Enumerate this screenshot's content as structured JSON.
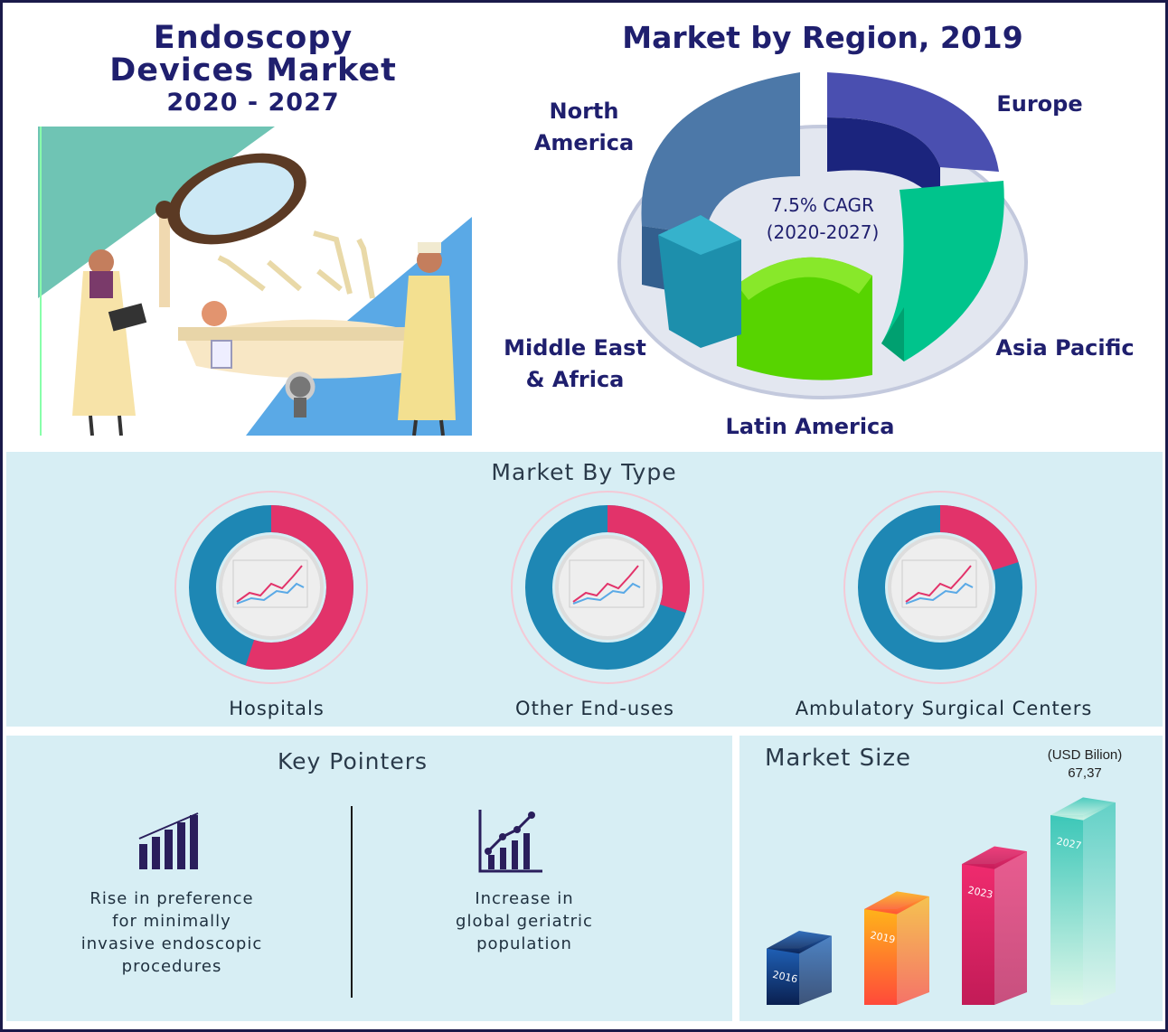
{
  "header": {
    "title_line1": "Endoscopy",
    "title_line2": "Devices Market",
    "years": "2020 - 2027"
  },
  "region": {
    "title": "Market by Region, 2019",
    "cagr_line1": "7.5% CAGR",
    "cagr_line2": "(2020-2027)",
    "labels": {
      "north_america_1": "North",
      "north_america_2": "America",
      "europe": "Europe",
      "asia_pacific": "Asia Pacific",
      "latin_america": "Latin America",
      "mea_1": "Middle East",
      "mea_2": "& Africa"
    }
  },
  "type_panel": {
    "heading": "Market By Type",
    "items": [
      {
        "label": "Hospitals",
        "share": 0.55
      },
      {
        "label": "Other End-uses",
        "share": 0.3
      },
      {
        "label": "Ambulatory Surgical Centers",
        "share": 0.2
      }
    ]
  },
  "key_pointers": {
    "heading": "Key Pointers",
    "items": [
      {
        "line1": "Rise in preference",
        "line2": "for minimally",
        "line3": "invasive endoscopic",
        "line4": "procedures",
        "icon": "bar-chart-icon"
      },
      {
        "line1": "Increase in",
        "line2": "global geriatric",
        "line3": "population",
        "line4": "",
        "icon": "growth-chart-icon"
      }
    ]
  },
  "market_size": {
    "heading": "Market Size",
    "unit": "(USD Bilion)",
    "top_value": "67,37"
  },
  "colors": {
    "navy": "#1f1f6e",
    "panel_bg": "#d7eef4",
    "donut_pink": "#e2336a",
    "donut_blue": "#1e87b4"
  },
  "chart_data": [
    {
      "type": "pie",
      "title": "Market by Region, 2019",
      "categories": [
        "North America",
        "Europe",
        "Asia Pacific",
        "Latin America",
        "Middle East & Africa"
      ],
      "values": [
        30,
        24,
        22,
        14,
        10
      ]
    },
    {
      "type": "pie",
      "title": "Market By Type",
      "categories": [
        "Hospitals",
        "Other End-uses",
        "Ambulatory Surgical Centers"
      ],
      "values": [
        55,
        30,
        20
      ]
    },
    {
      "type": "bar",
      "title": "Market Size",
      "ylabel": "(USD Bilion)",
      "categories": [
        "2016",
        "2019",
        "2023",
        "2027"
      ],
      "values": [
        20,
        34,
        50,
        67.37
      ],
      "data_labels": [
        "",
        "",
        "",
        "67,37"
      ]
    }
  ]
}
